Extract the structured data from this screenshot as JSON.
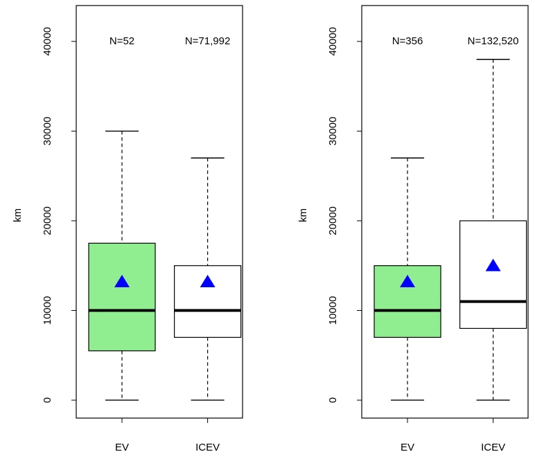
{
  "chart_data": [
    {
      "type": "boxplot",
      "ylabel": "km",
      "ylim": [
        -2000,
        44000
      ],
      "yticks": [
        0,
        10000,
        20000,
        30000,
        40000
      ],
      "categories": [
        "EV",
        "ICEV"
      ],
      "boxes": [
        {
          "category": "EV",
          "n_label": "N=52",
          "min": 0,
          "q1": 5500,
          "median": 10000,
          "q3": 17500,
          "max": 30000,
          "mean": 13200,
          "fill": "#90ee90"
        },
        {
          "category": "ICEV",
          "n_label": "N=71,992",
          "min": 0,
          "q1": 7000,
          "median": 10000,
          "q3": 15000,
          "max": 27000,
          "mean": 13200,
          "fill": "#ffffff"
        }
      ],
      "mean_marker_color": "#0000ff"
    },
    {
      "type": "boxplot",
      "ylabel": "km",
      "ylim": [
        -2000,
        44000
      ],
      "yticks": [
        0,
        10000,
        20000,
        30000,
        40000
      ],
      "categories": [
        "EV",
        "ICEV"
      ],
      "boxes": [
        {
          "category": "EV",
          "n_label": "N=356",
          "min": 0,
          "q1": 7000,
          "median": 10000,
          "q3": 15000,
          "max": 27000,
          "mean": 13200,
          "fill": "#90ee90"
        },
        {
          "category": "ICEV",
          "n_label": "N=132,520",
          "min": 0,
          "q1": 8000,
          "median": 11000,
          "q3": 20000,
          "max": 38000,
          "mean": 15000,
          "fill": "#ffffff"
        }
      ],
      "mean_marker_color": "#0000ff"
    }
  ]
}
